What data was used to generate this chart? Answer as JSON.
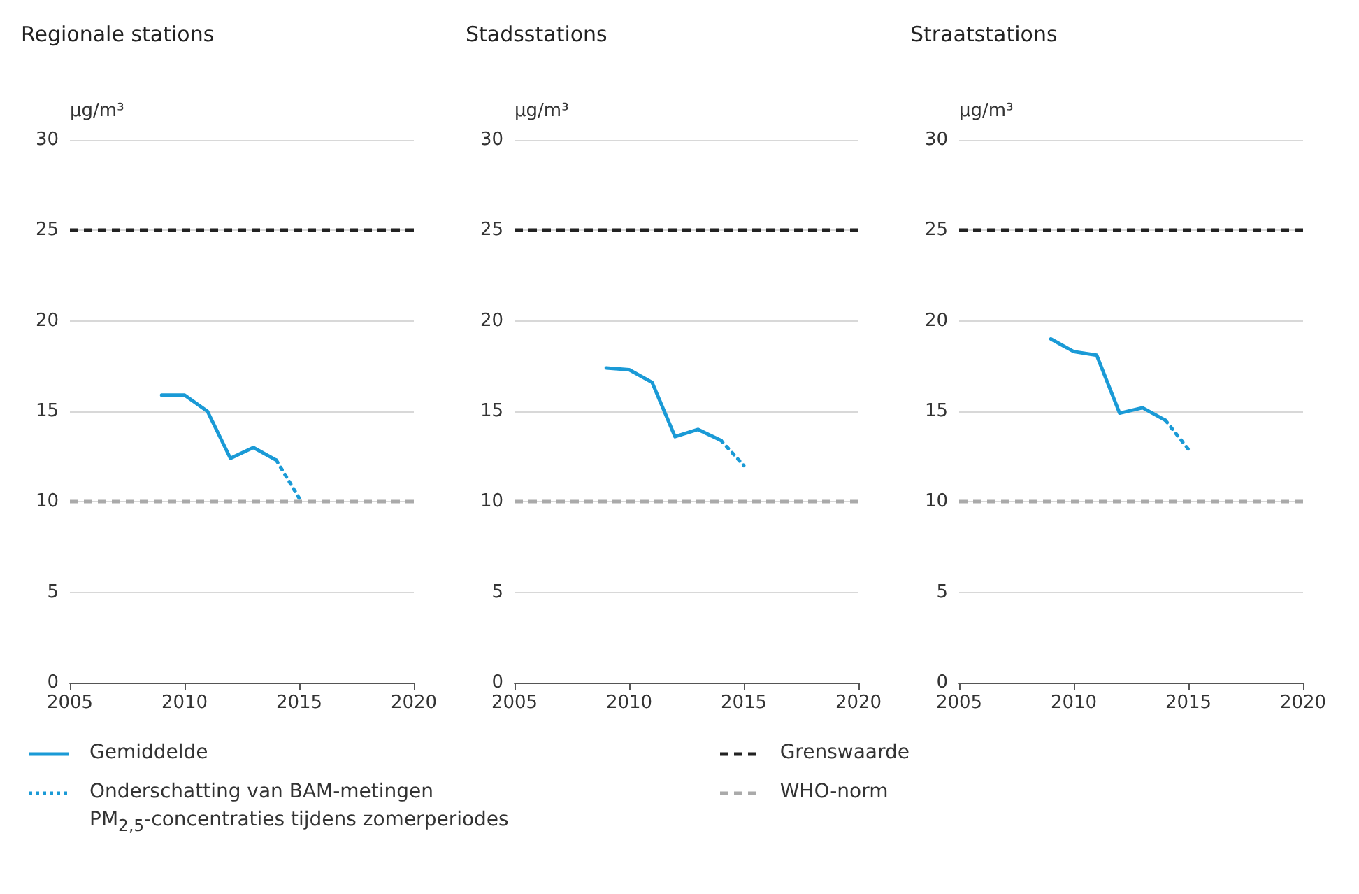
{
  "chart_data": [
    {
      "type": "line",
      "title": "Regionale stations",
      "ylabel": "µg/m³",
      "xlim": [
        2005,
        2020
      ],
      "xticks": [
        2005,
        2010,
        2015,
        2020
      ],
      "ylim": [
        0,
        30
      ],
      "yticks": [
        0,
        5,
        10,
        15,
        20,
        25,
        30
      ],
      "grid": "y",
      "legend": "bottom",
      "marker": "none",
      "series": [
        {
          "name": "Gemiddelde",
          "color": "#1a9ad6",
          "line_style": "solid",
          "x": [
            2009,
            2010,
            2011,
            2012,
            2013,
            2014
          ],
          "values": [
            15.9,
            15.9,
            15.0,
            12.4,
            13.0,
            12.3
          ]
        },
        {
          "name": "Onderschatting van BAM-metingen\nPM$_{2,5}$-concentraties tijdens zomerperiodes",
          "color": "#1a9ad6",
          "line_style": "dotted",
          "x": [
            2014,
            2015
          ],
          "values": [
            12.3,
            10.2
          ]
        }
      ],
      "ref_lines": [
        {
          "axis": "y",
          "value": 25,
          "label": "Grenswaarde",
          "color": "#222222",
          "line_style": "dashed"
        },
        {
          "axis": "y",
          "value": 10,
          "label": "WHO-norm",
          "color": "#aaaaaa",
          "line_style": "dashed"
        }
      ]
    },
    {
      "type": "line",
      "title": "Stadsstations",
      "ylabel": "µg/m³",
      "xlim": [
        2005,
        2020
      ],
      "xticks": [
        2005,
        2010,
        2015,
        2020
      ],
      "ylim": [
        0,
        30
      ],
      "yticks": [
        0,
        5,
        10,
        15,
        20,
        25,
        30
      ],
      "grid": "y",
      "marker": "none",
      "series": [
        {
          "color": "#1a9ad6",
          "line_style": "solid",
          "x": [
            2009,
            2010,
            2011,
            2012,
            2013,
            2014
          ],
          "values": [
            17.4,
            17.3,
            16.6,
            13.6,
            14.0,
            13.4
          ]
        },
        {
          "color": "#1a9ad6",
          "line_style": "dotted",
          "x": [
            2014,
            2015
          ],
          "values": [
            13.4,
            12.0
          ]
        }
      ],
      "ref_lines": [
        {
          "axis": "y",
          "value": 25,
          "color": "#222222",
          "line_style": "dashed"
        },
        {
          "axis": "y",
          "value": 10,
          "color": "#aaaaaa",
          "line_style": "dashed"
        }
      ]
    },
    {
      "type": "line",
      "title": "Straatstations",
      "ylabel": "µg/m³",
      "xlim": [
        2005,
        2020
      ],
      "xticks": [
        2005,
        2010,
        2015,
        2020
      ],
      "ylim": [
        0,
        30
      ],
      "yticks": [
        0,
        5,
        10,
        15,
        20,
        25,
        30
      ],
      "grid": "y",
      "marker": "none",
      "series": [
        {
          "color": "#1a9ad6",
          "line_style": "solid",
          "x": [
            2009,
            2010,
            2011,
            2012,
            2013,
            2014
          ],
          "values": [
            19.0,
            18.3,
            18.1,
            14.9,
            15.2,
            14.5
          ]
        },
        {
          "color": "#1a9ad6",
          "line_style": "dotted",
          "x": [
            2014,
            2015
          ],
          "values": [
            14.5,
            12.9
          ]
        }
      ],
      "ref_lines": [
        {
          "axis": "y",
          "value": 25,
          "color": "#222222",
          "line_style": "dashed"
        },
        {
          "axis": "y",
          "value": 10,
          "color": "#aaaaaa",
          "line_style": "dashed"
        }
      ]
    }
  ]
}
